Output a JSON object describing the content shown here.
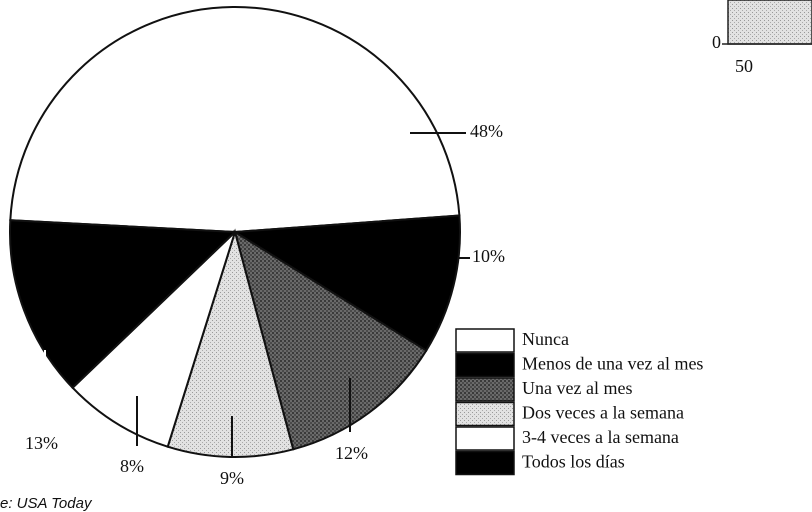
{
  "chart_data": {
    "type": "pie",
    "categories": [
      "Nunca",
      "Menos de una vez al mes",
      "Una vez al mes",
      "Dos veces a la semana",
      "3-4 veces a la semana",
      "Todos los días"
    ],
    "values": [
      48,
      10,
      12,
      9,
      8,
      13
    ],
    "value_labels": [
      "48%",
      "10%",
      "12%",
      "9%",
      "8%",
      "13%"
    ],
    "colors": [
      "#ffffff",
      "#000000",
      "#5a5a5a",
      "#d4d4d4",
      "#ffffff",
      "#000000"
    ]
  },
  "source": "e: USA Today",
  "fragment_labels": [
    "0",
    "50"
  ]
}
